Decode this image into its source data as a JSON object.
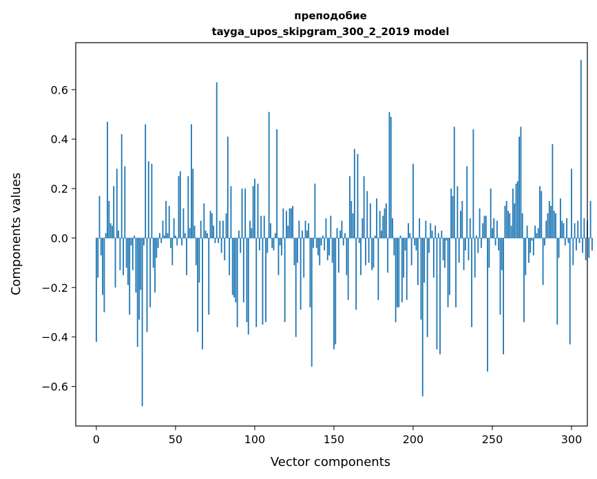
{
  "chart_data": {
    "type": "bar",
    "title": "преподобие",
    "subtitle": "tayga_upos_skipgram_300_2_2019 model",
    "xlabel": "Vector components",
    "ylabel": "Components values",
    "xlim": [
      -13,
      310
    ],
    "ylim": [
      -0.76,
      0.79
    ],
    "xticks": [
      0,
      50,
      100,
      150,
      200,
      250,
      300
    ],
    "yticks": [
      -0.6,
      -0.4,
      -0.2,
      0.0,
      0.2,
      0.4,
      0.6
    ],
    "ytick_labels": [
      "−0.6",
      "−0.4",
      "−0.2",
      "0.0",
      "0.2",
      "0.4",
      "0.6"
    ],
    "grid": false,
    "bar_color": "#1f77b4",
    "x_start": 0,
    "values": [
      -0.42,
      -0.16,
      0.17,
      -0.07,
      -0.23,
      -0.3,
      0.02,
      0.47,
      0.15,
      0.06,
      0.05,
      0.21,
      -0.2,
      0.28,
      0.03,
      -0.13,
      0.42,
      -0.15,
      0.29,
      -0.12,
      -0.19,
      -0.31,
      -0.03,
      -0.13,
      0.01,
      -0.22,
      -0.44,
      -0.33,
      -0.21,
      -0.68,
      -0.03,
      0.46,
      -0.38,
      0.31,
      -0.28,
      0.3,
      -0.12,
      -0.22,
      -0.08,
      -0.04,
      0.02,
      -0.02,
      0.07,
      0.01,
      0.15,
      0.02,
      0.13,
      -0.04,
      -0.11,
      0.08,
      0.01,
      -0.03,
      0.25,
      0.27,
      -0.03,
      0.12,
      0.02,
      -0.15,
      0.25,
      0.04,
      0.46,
      0.28,
      0.05,
      -0.11,
      -0.38,
      -0.18,
      0.07,
      -0.45,
      0.14,
      0.03,
      0.02,
      -0.31,
      0.11,
      0.1,
      0.05,
      -0.02,
      0.63,
      -0.02,
      0.07,
      -0.06,
      0.07,
      -0.09,
      0.1,
      0.41,
      -0.15,
      0.21,
      -0.23,
      -0.24,
      -0.26,
      -0.36,
      0.03,
      -0.06,
      0.2,
      -0.26,
      0.2,
      -0.34,
      -0.39,
      0.07,
      0.04,
      0.21,
      0.24,
      -0.36,
      0.22,
      -0.05,
      0.09,
      -0.35,
      0.09,
      -0.34,
      -0.06,
      0.51,
      0.06,
      -0.04,
      -0.05,
      0.02,
      0.44,
      -0.15,
      -0.03,
      -0.07,
      0.12,
      -0.34,
      0.11,
      0.05,
      0.12,
      0.12,
      0.13,
      -0.11,
      -0.4,
      -0.1,
      0.07,
      -0.29,
      0.03,
      -0.16,
      0.07,
      0.03,
      0.06,
      -0.28,
      -0.52,
      -0.04,
      0.22,
      -0.04,
      -0.07,
      -0.11,
      -0.03,
      0.01,
      -0.05,
      0.08,
      -0.09,
      -0.07,
      0.09,
      -0.1,
      -0.45,
      -0.43,
      0.04,
      -0.14,
      0.03,
      0.07,
      -0.03,
      0.02,
      -0.15,
      -0.25,
      0.25,
      0.15,
      0.1,
      0.36,
      -0.29,
      0.34,
      -0.02,
      -0.15,
      0.08,
      0.25,
      -0.11,
      0.19,
      -0.1,
      0.14,
      -0.13,
      -0.12,
      0.01,
      0.16,
      -0.25,
      0.11,
      0.03,
      0.09,
      0.12,
      0.14,
      -0.14,
      0.51,
      0.49,
      0.08,
      -0.07,
      -0.34,
      -0.28,
      -0.28,
      0.01,
      -0.26,
      -0.16,
      -0.05,
      -0.25,
      0.06,
      0.02,
      -0.11,
      0.3,
      -0.03,
      -0.05,
      -0.19,
      0.08,
      -0.33,
      -0.64,
      -0.18,
      0.07,
      -0.4,
      -0.06,
      0.06,
      0.03,
      -0.16,
      0.05,
      -0.45,
      0.02,
      -0.47,
      0.03,
      -0.09,
      -0.12,
      -0.01,
      -0.28,
      -0.23,
      0.2,
      0.17,
      0.45,
      -0.28,
      0.21,
      -0.1,
      0.11,
      0.15,
      -0.13,
      -0.05,
      0.29,
      -0.09,
      0.08,
      -0.36,
      0.44,
      -0.16,
      0.01,
      -0.06,
      0.12,
      -0.04,
      0.06,
      0.09,
      0.09,
      -0.54,
      -0.12,
      0.2,
      0.04,
      0.08,
      -0.03,
      0.07,
      -0.05,
      -0.31,
      -0.13,
      -0.47,
      0.13,
      0.15,
      0.11,
      0.1,
      0.05,
      0.2,
      0.14,
      0.22,
      0.23,
      0.41,
      0.45,
      0.1,
      -0.34,
      -0.15,
      0.05,
      -0.1,
      -0.06,
      -0.01,
      -0.07,
      0.05,
      0.02,
      0.04,
      0.21,
      0.19,
      -0.19,
      -0.03,
      0.07,
      0.1,
      0.15,
      0.13,
      0.38,
      0.11,
      0.1,
      -0.35,
      -0.08,
      0.16,
      0.07,
      0.06,
      -0.03,
      0.08,
      -0.02,
      -0.43,
      0.28,
      -0.11,
      0.06,
      -0.05,
      0.07,
      -0.02,
      0.72,
      -0.06,
      0.08,
      -0.09,
      0.07,
      -0.08,
      0.15,
      -0.05
    ]
  }
}
